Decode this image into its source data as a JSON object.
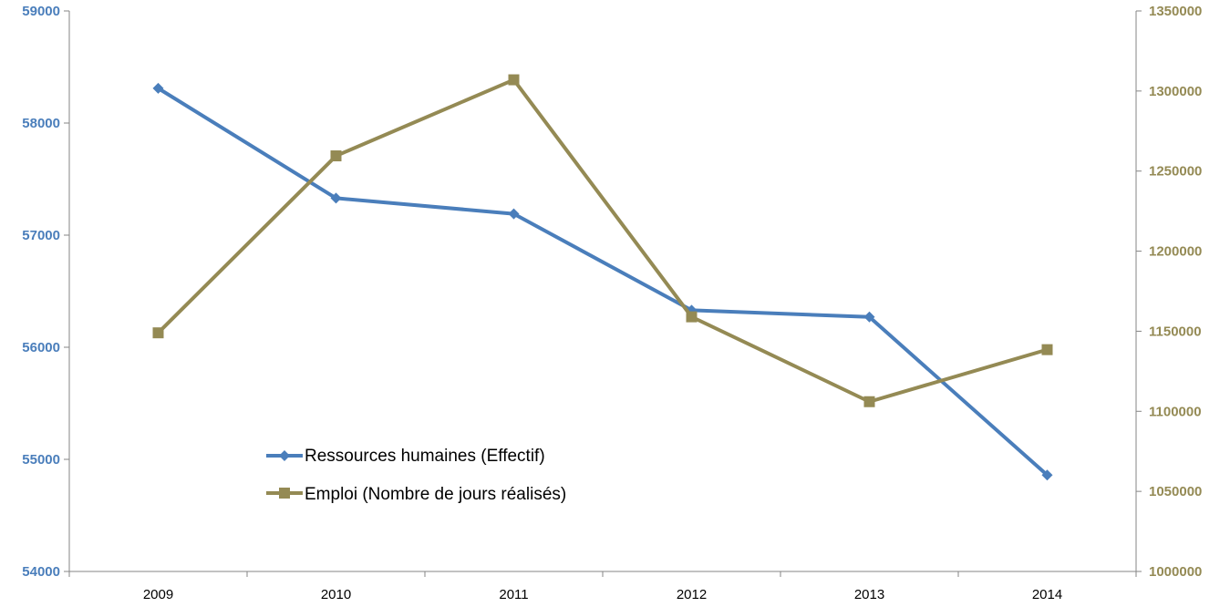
{
  "chart_data": {
    "type": "line",
    "title": "",
    "xlabel": "",
    "categories": [
      "2009",
      "2010",
      "2011",
      "2012",
      "2013",
      "2014"
    ],
    "y_left": {
      "range": [
        54000,
        59000
      ],
      "ticks": [
        "54000",
        "55000",
        "56000",
        "57000",
        "58000",
        "59000"
      ],
      "color": "#4a7ebb"
    },
    "y_right": {
      "range": [
        1000000,
        1350000
      ],
      "ticks": [
        "1000000",
        "1050000",
        "1100000",
        "1150000",
        "1200000",
        "1250000",
        "1300000",
        "1350000"
      ],
      "color": "#948a54"
    },
    "grid": false,
    "legend_position": "inside-bottom-left",
    "series": [
      {
        "name": "Ressources humaines (Effectif)",
        "axis": "left",
        "color": "#4a7ebb",
        "marker": "diamond",
        "values": [
          58310,
          57330,
          57190,
          56330,
          56270,
          54860
        ]
      },
      {
        "name": "Emploi (Nombre de jours réalisés)",
        "axis": "right",
        "color": "#948a54",
        "marker": "square",
        "values": [
          1149000,
          1259500,
          1307000,
          1159000,
          1106000,
          1138500
        ]
      }
    ]
  }
}
